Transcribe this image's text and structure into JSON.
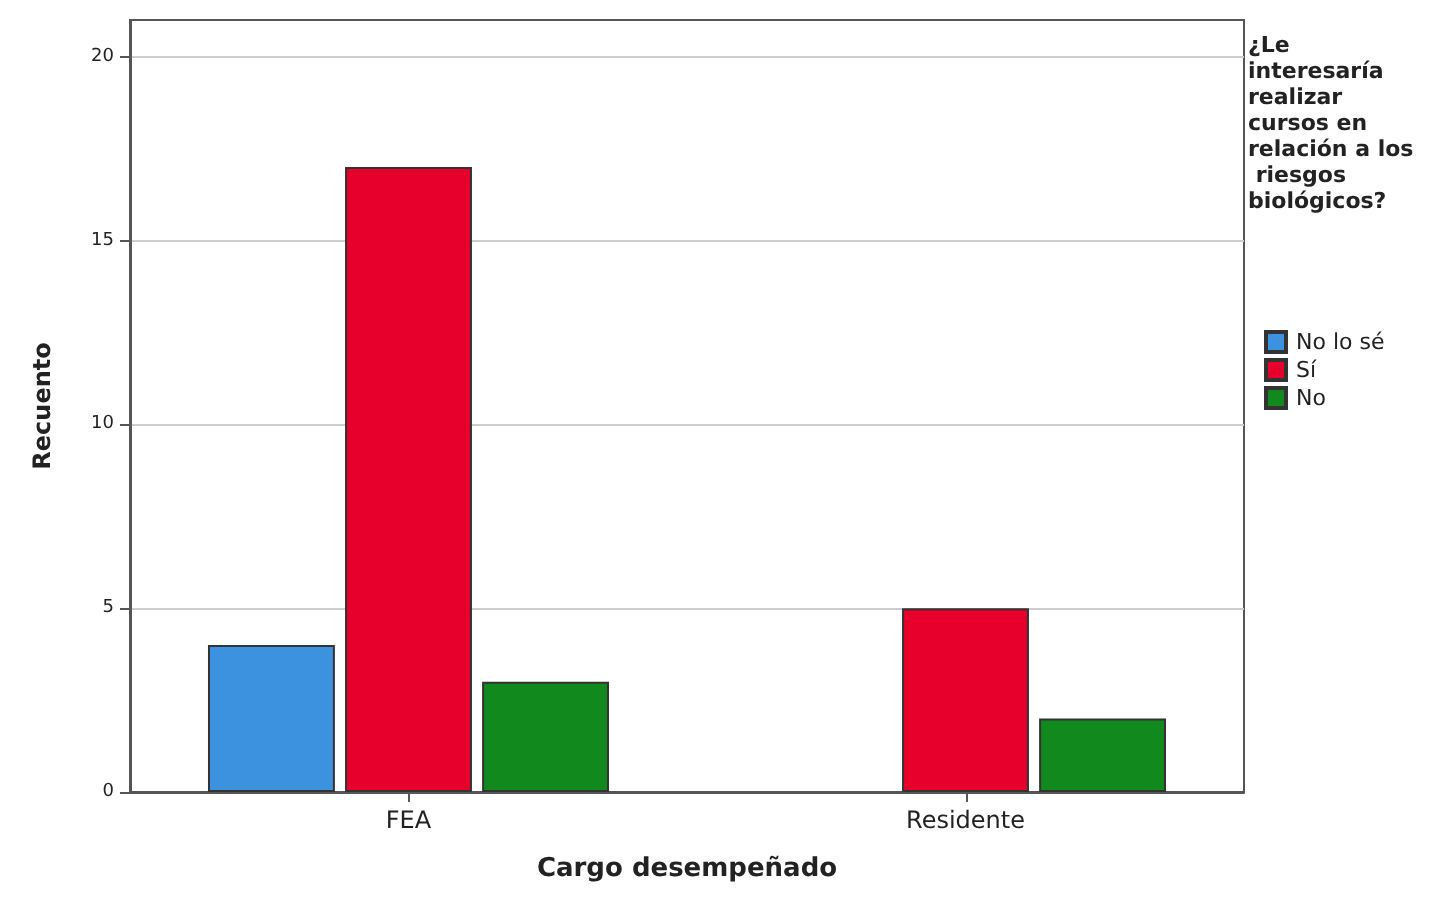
{
  "chart_data": {
    "type": "bar",
    "xlabel": "Cargo desempeñado",
    "ylabel": "Recuento",
    "legend_title": "¿Le interesaría realizar cursos en relación a los riesgos biológicos?",
    "categories": [
      "FEA",
      "Residente"
    ],
    "series": [
      {
        "name": "No lo sé",
        "color": "#3d92e0",
        "values": [
          4,
          null
        ]
      },
      {
        "name": "Sí",
        "color": "#e6002b",
        "values": [
          17,
          5
        ]
      },
      {
        "name": "No",
        "color": "#12891c",
        "values": [
          3,
          2
        ]
      }
    ],
    "ylim": [
      0,
      21
    ],
    "yticks": [
      0,
      5,
      10,
      15,
      20
    ],
    "grid": "y",
    "legend": "right"
  }
}
